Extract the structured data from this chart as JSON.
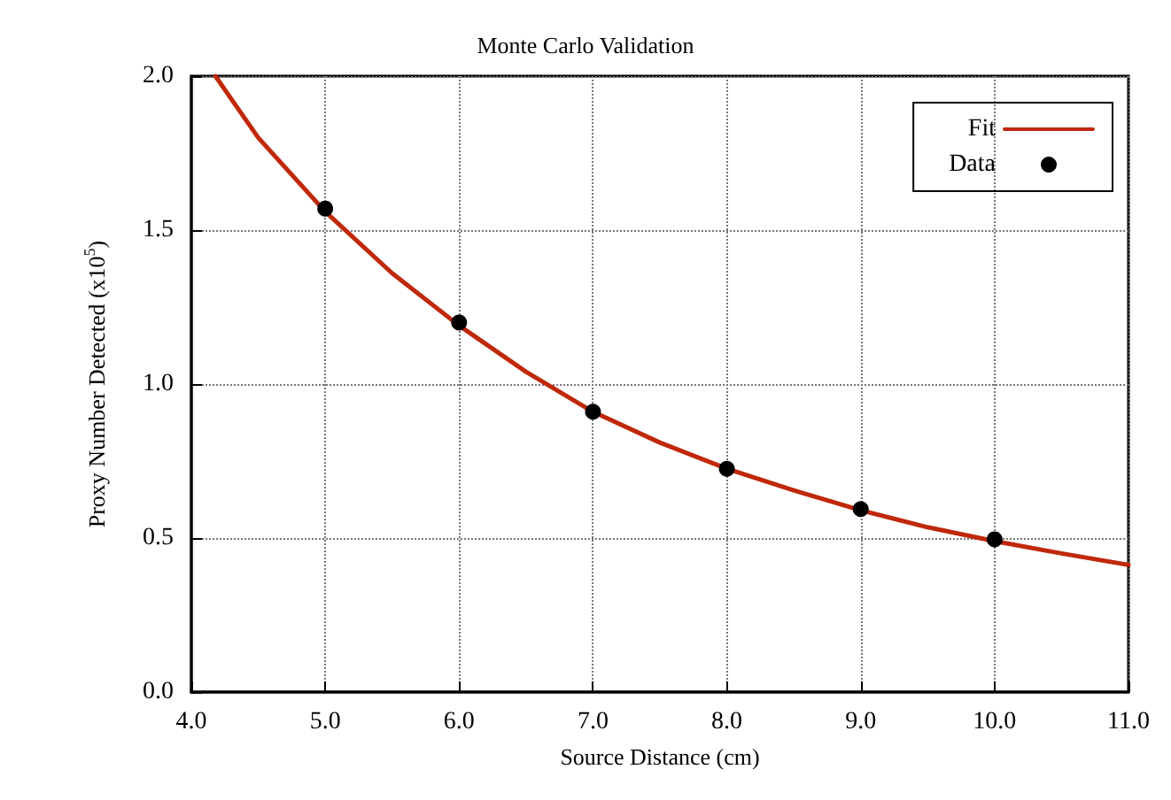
{
  "chart_data": {
    "type": "line",
    "title": "Monte Carlo Validation",
    "xlabel": "Source Distance (cm)",
    "ylabel": "Proxy Number Detected (x10$^{5}$)",
    "xlim": [
      4,
      11
    ],
    "xticks": [
      {
        "value": 4,
        "label": "4.0"
      },
      {
        "value": 5,
        "label": "5.0"
      },
      {
        "value": 6,
        "label": "6.0"
      },
      {
        "value": 7,
        "label": "7.0"
      },
      {
        "value": 8,
        "label": "8.0"
      },
      {
        "value": 9,
        "label": "9.0"
      },
      {
        "value": 10,
        "label": "10.0"
      },
      {
        "value": 11,
        "label": "11.0"
      }
    ],
    "ylim": [
      0,
      2
    ],
    "yticks": [
      {
        "value": 0,
        "label": "0.0"
      },
      {
        "value": 0.5,
        "label": "0.5"
      },
      {
        "value": 1,
        "label": "1.0"
      },
      {
        "value": 1.5,
        "label": "1.5"
      },
      {
        "value": 2,
        "label": "2.0"
      }
    ],
    "grid": true,
    "legend": "top right",
    "series": [
      {
        "name": "Fit",
        "color": "#c0280a",
        "marker": "none",
        "line_style": "solid",
        "x": [
          4.18,
          4.5,
          5,
          5.5,
          6,
          6.5,
          7,
          7.5,
          8,
          8.5,
          9,
          9.5,
          10,
          10.5,
          11
        ],
        "values": [
          2.0,
          1.8,
          1.56,
          1.36,
          1.19,
          1.04,
          0.91,
          0.81,
          0.725,
          0.655,
          0.59,
          0.535,
          0.49,
          0.45,
          0.413
        ]
      },
      {
        "name": "Data",
        "type": "scatter",
        "color": "#000000",
        "marker": "circle",
        "x": [
          5,
          6,
          7,
          8,
          9,
          10
        ],
        "values": [
          1.57,
          1.2,
          0.91,
          0.725,
          0.594,
          0.496
        ]
      }
    ]
  }
}
